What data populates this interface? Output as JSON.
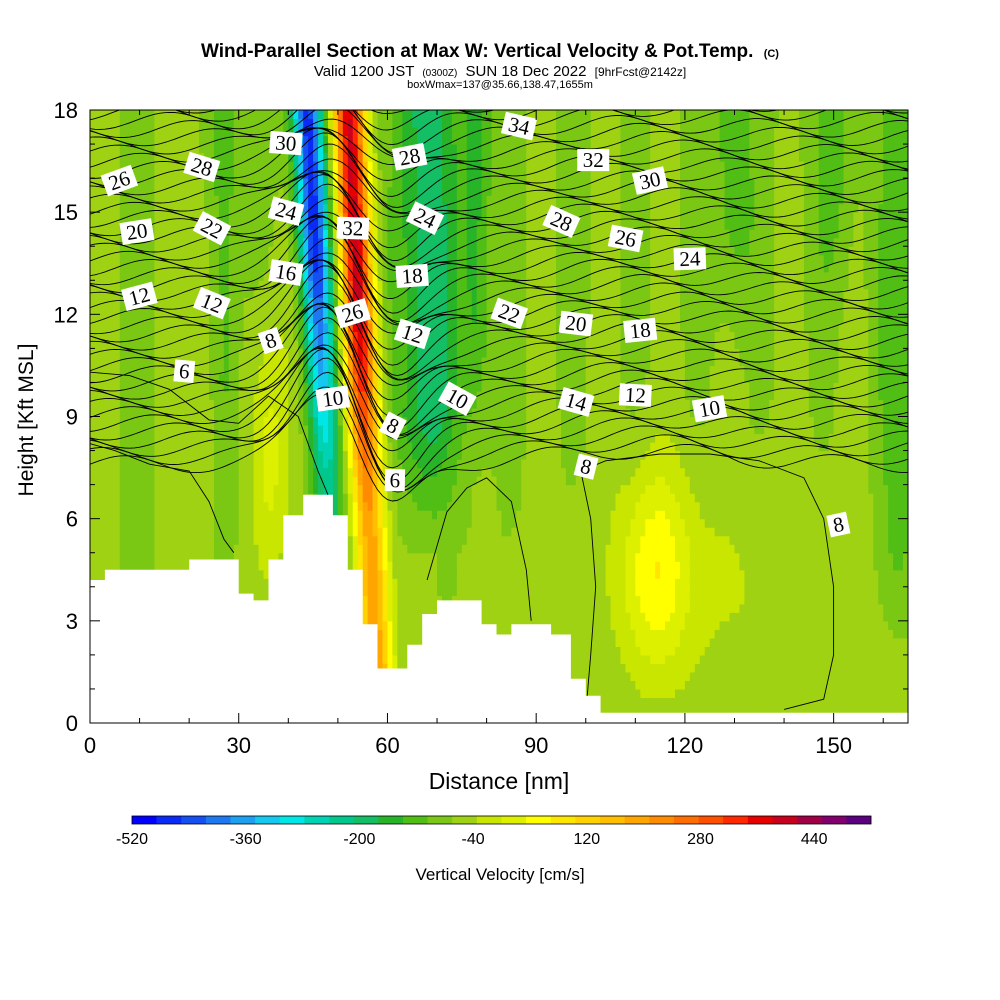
{
  "chart_data": {
    "type": "heatmap",
    "title": "Wind-Parallel Section at Max W: Vertical Velocity & Pot.Temp.",
    "title_mark": "(C)",
    "subtitle_parts": [
      "Valid 1200 JST",
      "(0300Z)",
      "SUN 18 Dec 2022",
      "[9hrFcst@2142z]"
    ],
    "subtitle2": "boxWmax=137@35.66,138.47,1655m",
    "xlabel": "Distance [nm]",
    "ylabel": "Height [Kft MSL]",
    "xlim": [
      0,
      165
    ],
    "ylim": [
      0,
      18
    ],
    "xticks": [
      "0",
      "30",
      "60",
      "90",
      "120",
      "150"
    ],
    "yticks": [
      "0",
      "3",
      "6",
      "9",
      "12",
      "15",
      "18"
    ],
    "colorbar": {
      "label": "Vertical Velocity [cm/s]",
      "tick_labels": [
        "-520",
        "-360",
        "-200",
        "-40",
        "120",
        "280",
        "440"
      ],
      "tick_values": [
        -520,
        -360,
        -200,
        -40,
        120,
        280,
        440
      ],
      "range": [
        -520,
        520
      ],
      "bin_width": 40,
      "colors": [
        "#0000ff",
        "#0a2af5",
        "#1450f2",
        "#1e78f0",
        "#1ea0f0",
        "#14c8f0",
        "#00e6e6",
        "#00d2b4",
        "#00c88c",
        "#14be64",
        "#28b428",
        "#50be14",
        "#7ac814",
        "#a0d214",
        "#c8e600",
        "#dcf000",
        "#ffff00",
        "#ffe600",
        "#ffd200",
        "#ffbe00",
        "#ffa500",
        "#ff8c00",
        "#ff6e00",
        "#ff5000",
        "#ff2800",
        "#e60000",
        "#c8001e",
        "#a00046",
        "#82006e",
        "#5a0080"
      ]
    },
    "terrain_kft": [
      [
        0,
        4.2
      ],
      [
        3,
        4.5
      ],
      [
        20,
        4.8
      ],
      [
        27,
        4.8
      ],
      [
        30,
        3.8
      ],
      [
        33,
        3.6
      ],
      [
        36,
        4.8
      ],
      [
        39,
        6.1
      ],
      [
        43,
        6.7
      ],
      [
        49,
        6.1
      ],
      [
        52,
        4.5
      ],
      [
        55,
        2.9
      ],
      [
        58,
        1.6
      ],
      [
        64,
        2.3
      ],
      [
        67,
        3.2
      ],
      [
        70,
        3.6
      ],
      [
        75,
        3.6
      ],
      [
        79,
        2.9
      ],
      [
        82,
        2.6
      ],
      [
        85,
        2.9
      ],
      [
        93,
        2.6
      ],
      [
        97,
        1.3
      ],
      [
        100,
        0.8
      ],
      [
        103,
        0.3
      ],
      [
        165,
        0.3
      ]
    ],
    "theta_labels": [
      {
        "text": "26",
        "x": 6,
        "y": 15.9
      },
      {
        "text": "28",
        "x": 22.5,
        "y": 16.3
      },
      {
        "text": "30",
        "x": 39.5,
        "y": 17.0
      },
      {
        "text": "20",
        "x": 9.5,
        "y": 14.4
      },
      {
        "text": "22",
        "x": 24.5,
        "y": 14.5
      },
      {
        "text": "24",
        "x": 39.5,
        "y": 15.0
      },
      {
        "text": "32",
        "x": 53,
        "y": 14.5
      },
      {
        "text": "28",
        "x": 64.5,
        "y": 16.6
      },
      {
        "text": "24",
        "x": 67.5,
        "y": 14.8
      },
      {
        "text": "34",
        "x": 86.5,
        "y": 17.5
      },
      {
        "text": "32",
        "x": 101.5,
        "y": 16.5
      },
      {
        "text": "30",
        "x": 113,
        "y": 15.9
      },
      {
        "text": "28",
        "x": 95,
        "y": 14.7
      },
      {
        "text": "26",
        "x": 108,
        "y": 14.2
      },
      {
        "text": "24",
        "x": 121,
        "y": 13.6
      },
      {
        "text": "12",
        "x": 10,
        "y": 12.5
      },
      {
        "text": "12",
        "x": 24.5,
        "y": 12.3
      },
      {
        "text": "16",
        "x": 39.5,
        "y": 13.2
      },
      {
        "text": "18",
        "x": 65,
        "y": 13.1
      },
      {
        "text": "26",
        "x": 53,
        "y": 12.0
      },
      {
        "text": "22",
        "x": 84.5,
        "y": 12.0
      },
      {
        "text": "20",
        "x": 98,
        "y": 11.7
      },
      {
        "text": "18",
        "x": 111,
        "y": 11.5
      },
      {
        "text": "8",
        "x": 36.5,
        "y": 11.2
      },
      {
        "text": "12",
        "x": 65,
        "y": 11.4
      },
      {
        "text": "6",
        "x": 19,
        "y": 10.3
      },
      {
        "text": "10",
        "x": 49,
        "y": 9.5
      },
      {
        "text": "10",
        "x": 74,
        "y": 9.5
      },
      {
        "text": "14",
        "x": 98,
        "y": 9.4
      },
      {
        "text": "12",
        "x": 110,
        "y": 9.6
      },
      {
        "text": "10",
        "x": 125,
        "y": 9.2
      },
      {
        "text": "8",
        "x": 61,
        "y": 8.7
      },
      {
        "text": "8",
        "x": 100,
        "y": 7.5
      },
      {
        "text": "6",
        "x": 61.5,
        "y": 7.1
      },
      {
        "text": "8",
        "x": 151,
        "y": 5.8
      }
    ]
  }
}
